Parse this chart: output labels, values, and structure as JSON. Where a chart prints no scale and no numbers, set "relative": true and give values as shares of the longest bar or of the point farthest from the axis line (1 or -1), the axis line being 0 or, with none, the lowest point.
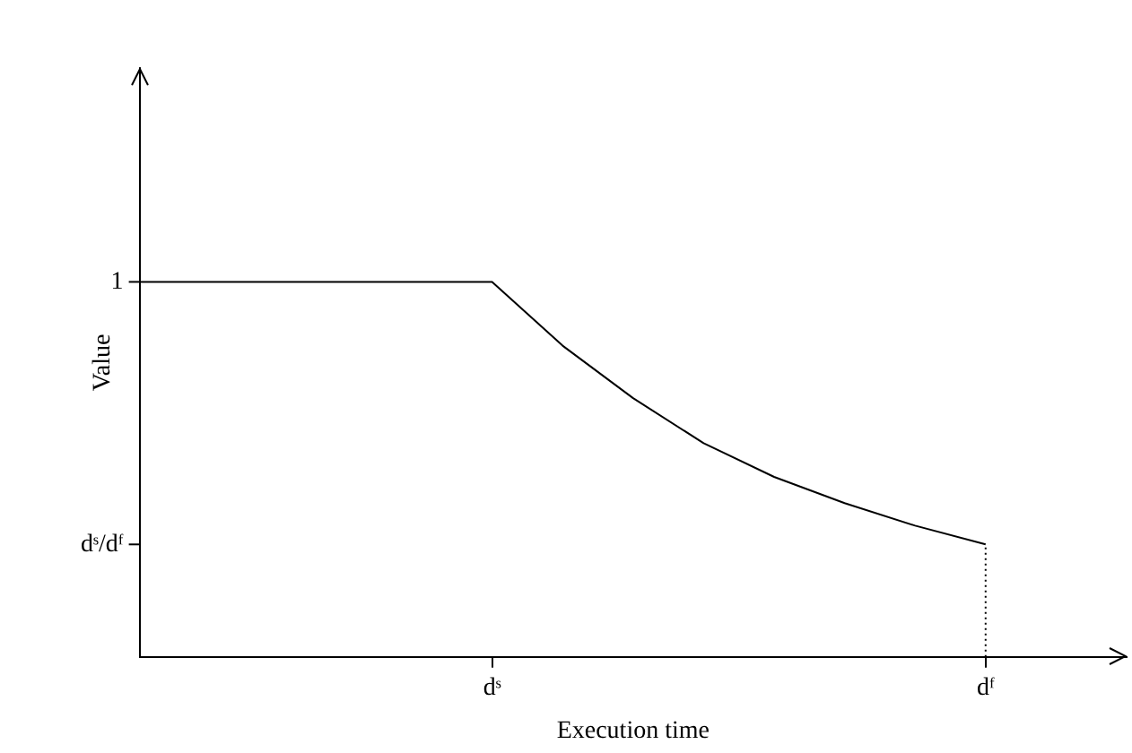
{
  "chart_data": {
    "type": "line",
    "relative": true,
    "xlabel": "Execution time",
    "ylabel": "Value",
    "categories": [
      null,
      null,
      null,
      null,
      null,
      "dˢ",
      null,
      null,
      null,
      null,
      null,
      null,
      "dᶠ",
      null,
      null
    ],
    "annotations": [
      "1",
      "dˢ/dᶠ"
    ],
    "ref_lines": [
      {
        "axis": "x",
        "value": "dᶠ",
        "line_style": "dotted"
      }
    ],
    "grid": false,
    "legend": false,
    "marker": "none",
    "series": [
      {
        "color": "#000000",
        "values": [
          1,
          1,
          1,
          1,
          1,
          1,
          0.83,
          0.69,
          0.57,
          0.48,
          0.41,
          0.35,
          0.3,
          null,
          null
        ]
      }
    ]
  }
}
